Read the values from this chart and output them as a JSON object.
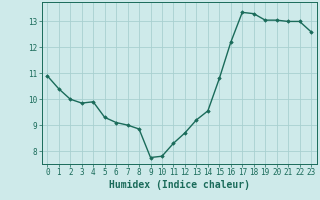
{
  "x": [
    0,
    1,
    2,
    3,
    4,
    5,
    6,
    7,
    8,
    9,
    10,
    11,
    12,
    13,
    14,
    15,
    16,
    17,
    18,
    19,
    20,
    21,
    22,
    23
  ],
  "y": [
    10.9,
    10.4,
    10.0,
    9.85,
    9.9,
    9.3,
    9.1,
    9.0,
    8.85,
    7.75,
    7.8,
    8.3,
    8.7,
    9.2,
    9.55,
    10.8,
    12.2,
    13.35,
    13.3,
    13.05,
    13.05,
    13.0,
    13.0,
    12.6
  ],
  "color": "#1a6b5a",
  "bg_color": "#ceeaea",
  "grid_color": "#a8d0d0",
  "xlabel": "Humidex (Indice chaleur)",
  "ylim": [
    7.5,
    13.75
  ],
  "xlim": [
    -0.5,
    23.5
  ],
  "yticks": [
    8,
    9,
    10,
    11,
    12,
    13
  ],
  "xticks": [
    0,
    1,
    2,
    3,
    4,
    5,
    6,
    7,
    8,
    9,
    10,
    11,
    12,
    13,
    14,
    15,
    16,
    17,
    18,
    19,
    20,
    21,
    22,
    23
  ],
  "marker": "D",
  "markersize": 1.8,
  "linewidth": 1.0,
  "xlabel_fontsize": 7,
  "tick_fontsize": 5.5
}
